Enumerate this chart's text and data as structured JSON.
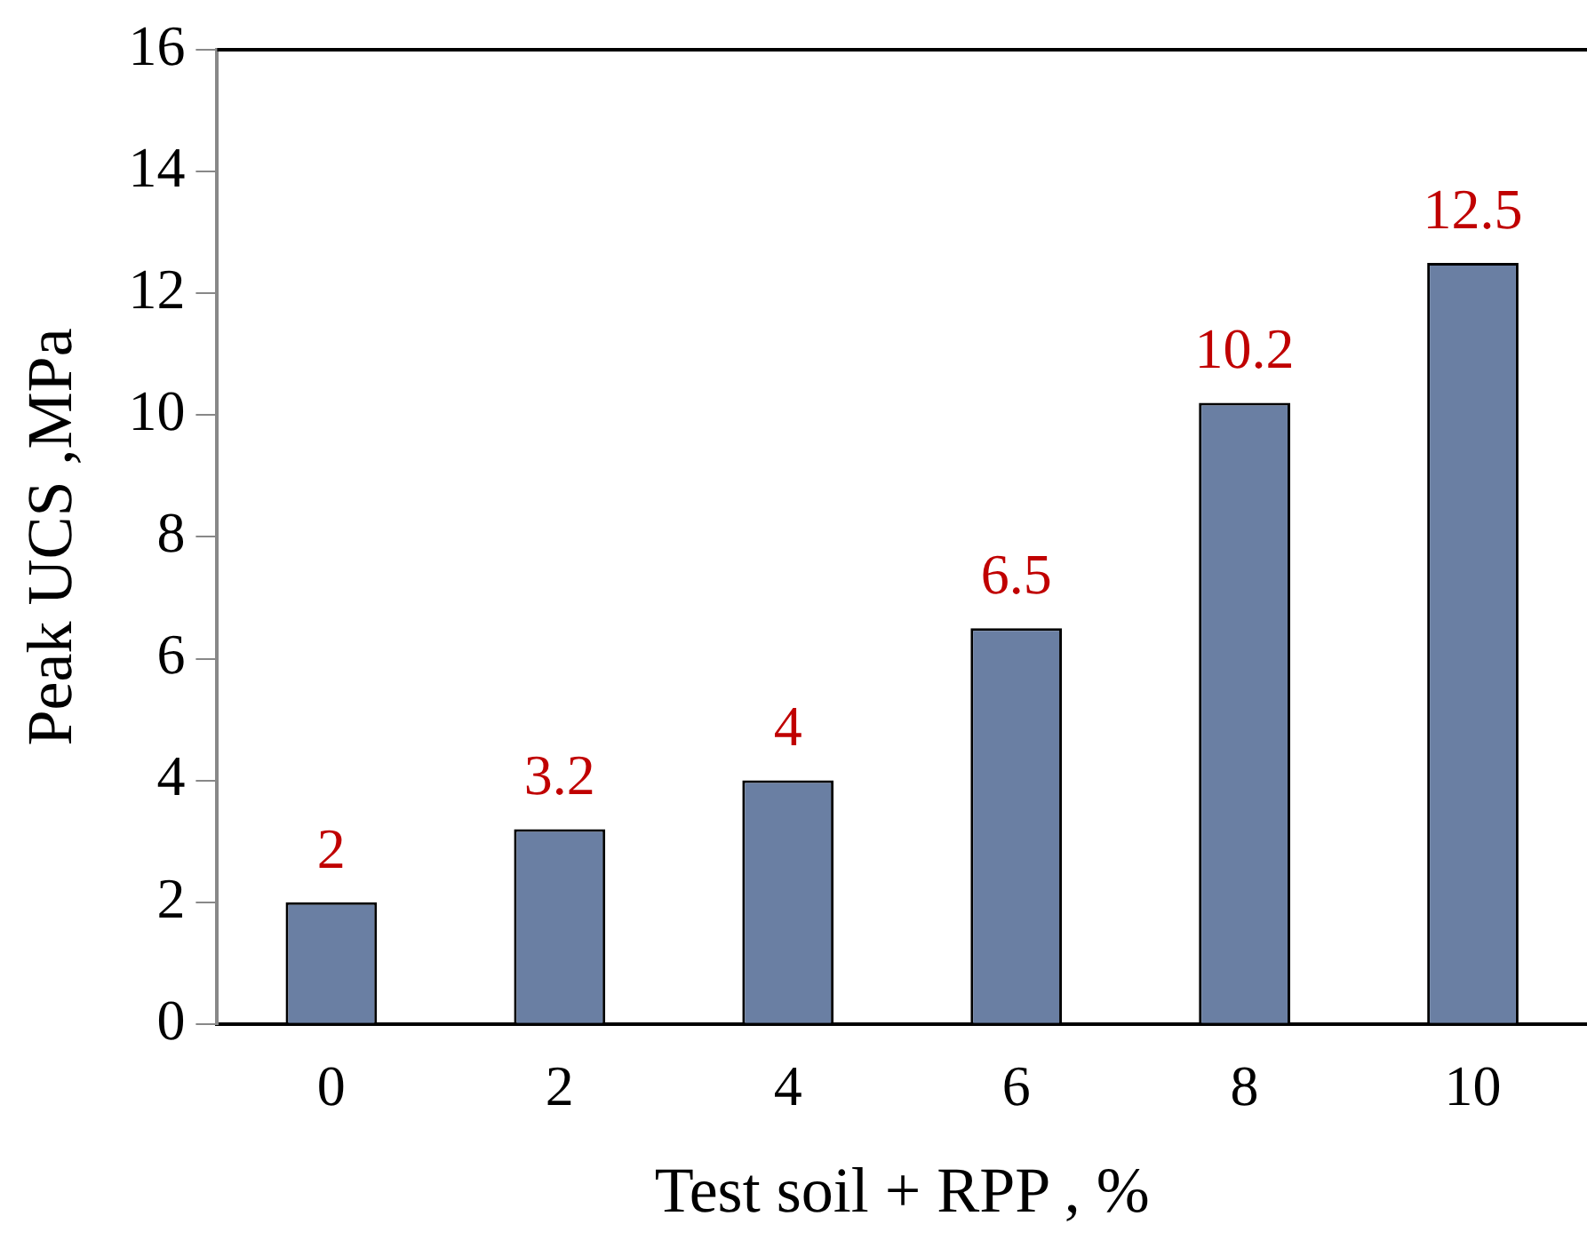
{
  "chart_data": {
    "type": "bar",
    "xlabel": "Test soil + RPP , %",
    "ylabel": "Peak UCS ,MPa",
    "categories": [
      "0",
      "2",
      "4",
      "6",
      "8",
      "10"
    ],
    "values": [
      2,
      3.2,
      4,
      6.5,
      10.2,
      12.5
    ],
    "color": "#6a7fa3",
    "ylim": [
      0,
      16
    ],
    "yticks": [
      0,
      2,
      4,
      6,
      8,
      10,
      12,
      14,
      16
    ],
    "data_labels": true,
    "grid": false,
    "legend": false
  }
}
